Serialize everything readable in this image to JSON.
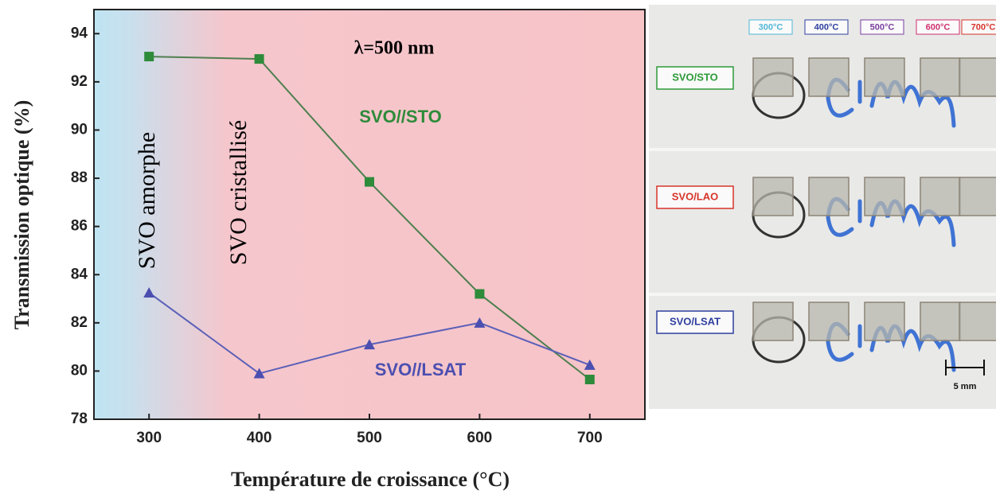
{
  "chart_data": {
    "type": "line",
    "title": "λ=500 nm",
    "x_label": "Température de croissance (°C)",
    "y_label": "Transmission optique (%)",
    "annotations": [
      "SVO amorphe",
      "SVO cristallisé"
    ],
    "x": [
      300,
      400,
      500,
      600,
      700
    ],
    "series": [
      {
        "name": "SVO//STO",
        "color": "#2e8b3a",
        "line_color": "#4f7f4f",
        "marker": "square",
        "values": [
          93.05,
          92.95,
          87.85,
          83.2,
          79.65
        ]
      },
      {
        "name": "SVO//LSAT",
        "color": "#4b4fb0",
        "line_color": "#5a5fb8",
        "marker": "triangle",
        "values": [
          83.25,
          79.9,
          81.1,
          82.0,
          80.25
        ]
      }
    ],
    "xlim": [
      250,
      750
    ],
    "ylim": [
      78,
      95
    ],
    "xticks": [
      300,
      400,
      500,
      600,
      700
    ],
    "yticks": [
      78,
      80,
      82,
      84,
      86,
      88,
      90,
      92,
      94
    ]
  },
  "photo": {
    "temperatures": [
      "300°C",
      "400°C",
      "500°C",
      "600°C",
      "700°C"
    ],
    "temperature_colors": [
      "#4fb6d6",
      "#2f3f9f",
      "#7a3fa0",
      "#d0306e",
      "#d8342a"
    ],
    "samples": [
      "SVO/STO",
      "SVO/LAO",
      "SVO/LSAT"
    ],
    "sample_colors": [
      "#2e9a3a",
      "#d8342a",
      "#2f3f9f"
    ],
    "scale": "5 mm"
  }
}
